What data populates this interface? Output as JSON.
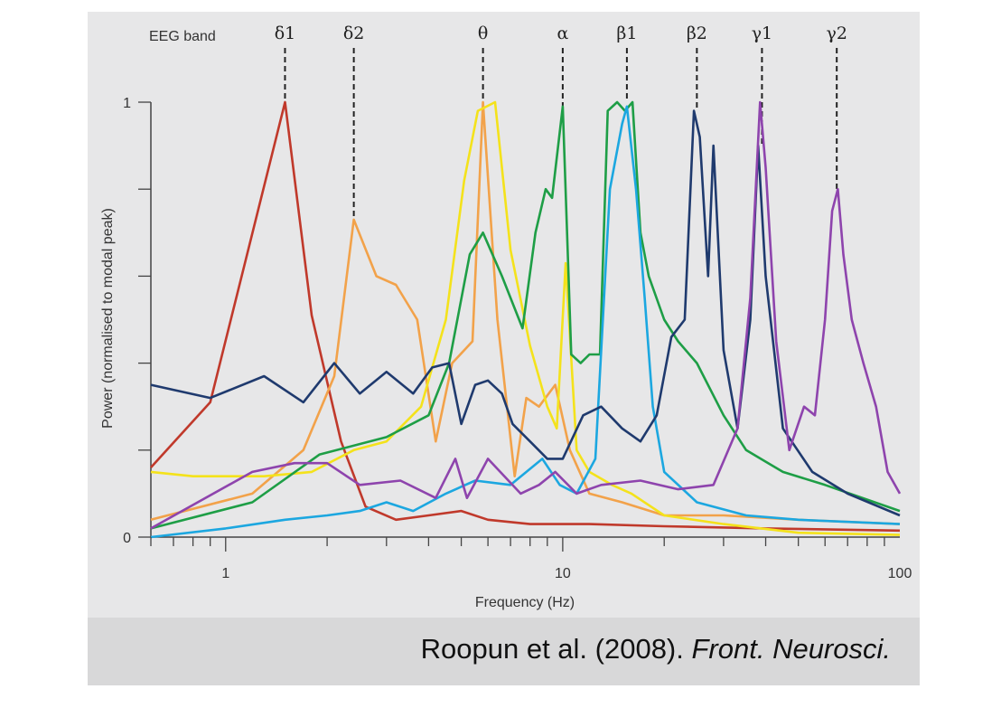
{
  "chart_data": {
    "type": "line",
    "xscale": "log",
    "xlim": [
      0.6,
      100
    ],
    "ylim": [
      0,
      1
    ],
    "xlabel": "Frequency (Hz)",
    "ylabel": "Power (normalised to modal peak)",
    "x_ticks": [
      1,
      10,
      100
    ],
    "y_ticks": [
      0,
      1
    ],
    "band_header": "EEG band",
    "bands": [
      {
        "label": "δ1",
        "freq": 1.5
      },
      {
        "label": "δ2",
        "freq": 2.4
      },
      {
        "label": "θ",
        "freq": 5.8
      },
      {
        "label": "α",
        "freq": 10
      },
      {
        "label": "β1",
        "freq": 15.5
      },
      {
        "label": "β2",
        "freq": 25
      },
      {
        "label": "γ1",
        "freq": 39
      },
      {
        "label": "γ2",
        "freq": 65
      }
    ],
    "series": [
      {
        "name": "delta1",
        "color": "#c0392b",
        "points": [
          [
            0.6,
            0.16
          ],
          [
            0.9,
            0.31
          ],
          [
            1.5,
            1.0
          ],
          [
            1.8,
            0.51
          ],
          [
            2.2,
            0.22
          ],
          [
            2.6,
            0.07
          ],
          [
            3.2,
            0.04
          ],
          [
            4,
            0.05
          ],
          [
            5,
            0.06
          ],
          [
            6,
            0.04
          ],
          [
            8,
            0.03
          ],
          [
            12,
            0.03
          ],
          [
            20,
            0.025
          ],
          [
            40,
            0.02
          ],
          [
            100,
            0.015
          ]
        ]
      },
      {
        "name": "delta2",
        "color": "#f2a24a",
        "points": [
          [
            0.6,
            0.04
          ],
          [
            1.2,
            0.1
          ],
          [
            1.7,
            0.2
          ],
          [
            2.1,
            0.37
          ],
          [
            2.4,
            0.73
          ],
          [
            2.8,
            0.6
          ],
          [
            3.2,
            0.58
          ],
          [
            3.7,
            0.5
          ],
          [
            4.2,
            0.22
          ],
          [
            4.7,
            0.4
          ],
          [
            5.4,
            0.45
          ],
          [
            5.8,
            1.0
          ],
          [
            6.4,
            0.5
          ],
          [
            7.2,
            0.14
          ],
          [
            7.8,
            0.32
          ],
          [
            8.5,
            0.3
          ],
          [
            9.5,
            0.35
          ],
          [
            10.5,
            0.2
          ],
          [
            12,
            0.1
          ],
          [
            15,
            0.08
          ],
          [
            20,
            0.05
          ],
          [
            30,
            0.05
          ],
          [
            50,
            0.04
          ],
          [
            100,
            0.03
          ]
        ]
      },
      {
        "name": "theta",
        "color": "#f4e21b",
        "points": [
          [
            0.6,
            0.15
          ],
          [
            0.8,
            0.14
          ],
          [
            1.3,
            0.14
          ],
          [
            1.8,
            0.15
          ],
          [
            2.4,
            0.2
          ],
          [
            3,
            0.22
          ],
          [
            3.8,
            0.3
          ],
          [
            4.5,
            0.5
          ],
          [
            5.1,
            0.82
          ],
          [
            5.6,
            0.98
          ],
          [
            6.3,
            1.0
          ],
          [
            7,
            0.66
          ],
          [
            8,
            0.44
          ],
          [
            9,
            0.3
          ],
          [
            9.6,
            0.25
          ],
          [
            10.2,
            0.63
          ],
          [
            11,
            0.2
          ],
          [
            12,
            0.15
          ],
          [
            14,
            0.12
          ],
          [
            16,
            0.1
          ],
          [
            20,
            0.05
          ],
          [
            30,
            0.03
          ],
          [
            50,
            0.01
          ],
          [
            100,
            0.005
          ]
        ]
      },
      {
        "name": "alpha",
        "color": "#1e9e46",
        "points": [
          [
            0.6,
            0.02
          ],
          [
            1.2,
            0.08
          ],
          [
            1.9,
            0.19
          ],
          [
            3,
            0.23
          ],
          [
            4,
            0.28
          ],
          [
            4.6,
            0.4
          ],
          [
            5.3,
            0.65
          ],
          [
            5.8,
            0.7
          ],
          [
            6.6,
            0.6
          ],
          [
            7.6,
            0.48
          ],
          [
            8.3,
            0.7
          ],
          [
            8.9,
            0.8
          ],
          [
            9.3,
            0.78
          ],
          [
            10,
            0.99
          ],
          [
            10.6,
            0.42
          ],
          [
            11.3,
            0.4
          ],
          [
            12,
            0.42
          ],
          [
            12.9,
            0.42
          ],
          [
            13.6,
            0.98
          ],
          [
            14.5,
            1.0
          ],
          [
            15.3,
            0.98
          ],
          [
            16.1,
            1.0
          ],
          [
            17,
            0.7
          ],
          [
            18,
            0.6
          ],
          [
            20,
            0.5
          ],
          [
            22,
            0.45
          ],
          [
            25,
            0.4
          ],
          [
            30,
            0.28
          ],
          [
            35,
            0.2
          ],
          [
            45,
            0.15
          ],
          [
            60,
            0.12
          ],
          [
            100,
            0.06
          ]
        ]
      },
      {
        "name": "beta1",
        "color": "#1ca7e0",
        "points": [
          [
            0.6,
            0.0
          ],
          [
            1,
            0.02
          ],
          [
            1.5,
            0.04
          ],
          [
            2,
            0.05
          ],
          [
            2.5,
            0.06
          ],
          [
            3,
            0.08
          ],
          [
            3.6,
            0.06
          ],
          [
            4.5,
            0.1
          ],
          [
            5.5,
            0.13
          ],
          [
            7,
            0.12
          ],
          [
            8.7,
            0.18
          ],
          [
            9.8,
            0.12
          ],
          [
            11,
            0.1
          ],
          [
            12.5,
            0.18
          ],
          [
            13.8,
            0.8
          ],
          [
            15,
            0.95
          ],
          [
            15.5,
            0.99
          ],
          [
            16.5,
            0.8
          ],
          [
            17.5,
            0.55
          ],
          [
            18.5,
            0.3
          ],
          [
            20,
            0.15
          ],
          [
            25,
            0.08
          ],
          [
            35,
            0.05
          ],
          [
            50,
            0.04
          ],
          [
            100,
            0.03
          ]
        ]
      },
      {
        "name": "beta2",
        "color": "#1f3a6e",
        "points": [
          [
            0.6,
            0.35
          ],
          [
            0.9,
            0.32
          ],
          [
            1.3,
            0.37
          ],
          [
            1.7,
            0.31
          ],
          [
            2.1,
            0.4
          ],
          [
            2.5,
            0.33
          ],
          [
            3,
            0.38
          ],
          [
            3.6,
            0.33
          ],
          [
            4.1,
            0.39
          ],
          [
            4.6,
            0.4
          ],
          [
            5,
            0.26
          ],
          [
            5.5,
            0.35
          ],
          [
            6,
            0.36
          ],
          [
            6.6,
            0.33
          ],
          [
            7.1,
            0.26
          ],
          [
            8,
            0.22
          ],
          [
            9,
            0.18
          ],
          [
            10,
            0.18
          ],
          [
            11.5,
            0.28
          ],
          [
            13,
            0.3
          ],
          [
            15,
            0.25
          ],
          [
            17,
            0.22
          ],
          [
            19,
            0.28
          ],
          [
            21,
            0.46
          ],
          [
            23,
            0.5
          ],
          [
            24.5,
            0.98
          ],
          [
            25.5,
            0.92
          ],
          [
            27,
            0.6
          ],
          [
            28,
            0.9
          ],
          [
            30,
            0.43
          ],
          [
            33,
            0.25
          ],
          [
            36,
            0.5
          ],
          [
            38,
            0.9
          ],
          [
            40,
            0.6
          ],
          [
            45,
            0.25
          ],
          [
            55,
            0.15
          ],
          [
            70,
            0.1
          ],
          [
            100,
            0.05
          ]
        ]
      },
      {
        "name": "gamma1",
        "color": "#8e44ad",
        "points": [
          [
            0.6,
            0.02
          ],
          [
            1.2,
            0.15
          ],
          [
            1.6,
            0.17
          ],
          [
            2,
            0.17
          ],
          [
            2.5,
            0.12
          ],
          [
            3.3,
            0.13
          ],
          [
            4.2,
            0.09
          ],
          [
            4.8,
            0.18
          ],
          [
            5.2,
            0.09
          ],
          [
            6,
            0.18
          ],
          [
            7.5,
            0.1
          ],
          [
            8.5,
            0.12
          ],
          [
            9.5,
            0.15
          ],
          [
            11,
            0.1
          ],
          [
            13,
            0.12
          ],
          [
            17,
            0.13
          ],
          [
            22,
            0.11
          ],
          [
            28,
            0.12
          ],
          [
            33,
            0.25
          ],
          [
            36,
            0.55
          ],
          [
            38.5,
            1.0
          ],
          [
            40,
            0.85
          ],
          [
            43,
            0.45
          ],
          [
            47,
            0.2
          ],
          [
            52,
            0.3
          ],
          [
            56,
            0.28
          ],
          [
            60,
            0.5
          ],
          [
            63,
            0.75
          ],
          [
            65.5,
            0.8
          ],
          [
            68,
            0.65
          ],
          [
            72,
            0.5
          ],
          [
            78,
            0.4
          ],
          [
            85,
            0.3
          ],
          [
            92,
            0.15
          ],
          [
            100,
            0.1
          ]
        ]
      }
    ]
  },
  "footer": {
    "citation_text": "Roopun et al. (2008). ",
    "journal": "Front. Neurosci."
  }
}
